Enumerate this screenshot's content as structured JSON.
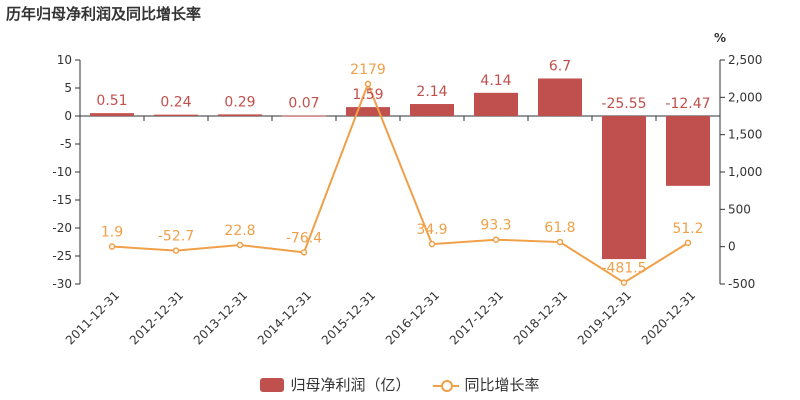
{
  "title": "历年归母净利润及同比增长率",
  "chart_data": {
    "type": "bar",
    "categories": [
      "2011-12-31",
      "2012-12-31",
      "2013-12-31",
      "2014-12-31",
      "2015-12-31",
      "2016-12-31",
      "2017-12-31",
      "2018-12-31",
      "2019-12-31",
      "2020-12-31"
    ],
    "series": [
      {
        "name": "归母净利润（亿）",
        "type": "bar",
        "axis": "left",
        "color": "#c0504d",
        "values": [
          0.51,
          0.24,
          0.29,
          0.07,
          1.59,
          2.14,
          4.14,
          6.7,
          -25.55,
          -12.47
        ],
        "labels": [
          "0.51",
          "0.24",
          "0.29",
          "0.07",
          "1.59",
          "2.14",
          "4.14",
          "6.7",
          "-25.55",
          "-12.47"
        ]
      },
      {
        "name": "同比增长率",
        "type": "line",
        "axis": "right",
        "color": "#f0a048",
        "values": [
          1.9,
          -52.7,
          22.8,
          -76.4,
          2179,
          34.9,
          93.3,
          61.8,
          -481.5,
          51.2
        ],
        "labels": [
          "1.9",
          "-52.7",
          "22.8",
          "-76.4",
          "2179",
          "34.9",
          "93.3",
          "61.8",
          "-481.5",
          "51.2"
        ]
      }
    ],
    "y_left": {
      "min": -30,
      "max": 10,
      "ticks": [
        "10",
        "5",
        "0",
        "-5",
        "-10",
        "-15",
        "-20",
        "-25",
        "-30"
      ]
    },
    "y_right": {
      "min": -500,
      "max": 2500,
      "unit": "%",
      "ticks": [
        "2,500",
        "2,000",
        "1,500",
        "1,000",
        "500",
        "0",
        "-500"
      ]
    },
    "legend_position": "bottom-center"
  }
}
